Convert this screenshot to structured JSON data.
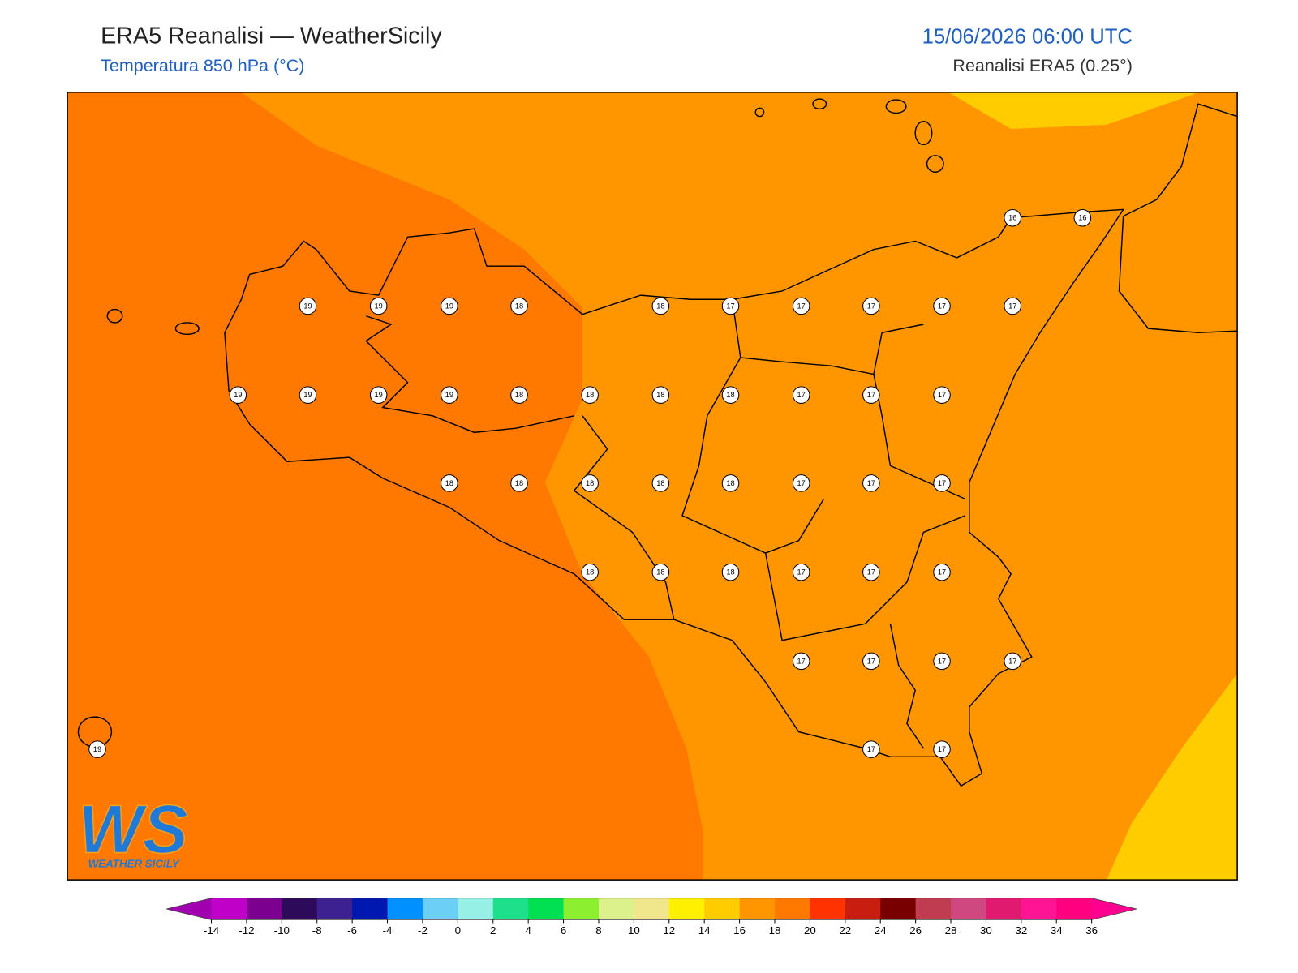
{
  "header": {
    "title": "ERA5 Reanalisi — WeatherSicily",
    "subtitle": "Temperatura 850 hPa (°C)",
    "datetime": "15/06/2026 06:00 UTC",
    "source": "Reanalisi ERA5 (0.25°)"
  },
  "map": {
    "points": [
      16,
      16,
      19,
      19,
      19,
      18,
      18,
      17,
      17,
      17,
      17,
      17,
      19,
      19,
      19,
      19,
      18,
      18,
      18,
      18,
      17,
      17,
      17,
      18,
      18,
      18,
      18,
      18,
      17,
      17,
      17,
      18,
      18,
      18,
      17,
      17,
      17,
      17,
      17,
      17,
      17,
      19,
      17,
      17
    ]
  },
  "colorbar": {
    "ticks": [
      -14,
      -12,
      -10,
      -8,
      -6,
      -4,
      -2,
      0,
      2,
      4,
      6,
      8,
      10,
      12,
      14,
      16,
      18,
      20,
      22,
      24,
      26,
      28,
      30,
      32,
      34,
      36
    ],
    "colors": [
      "#c000c8",
      "#7b0090",
      "#2d0a5a",
      "#3b2290",
      "#0018b0",
      "#0090ff",
      "#6ccff6",
      "#96f0e6",
      "#1ee08c",
      "#00e050",
      "#8cf030",
      "#dcf08c",
      "#f0e68c",
      "#fff000",
      "#ffcc00",
      "#ff9600",
      "#ff7800",
      "#ff3200",
      "#c81e0f",
      "#780000",
      "#c03c50",
      "#d04880",
      "#e01a6e",
      "#ff1493",
      "#ff0080"
    ],
    "under_color": "#a000b0",
    "over_color": "#ff0090"
  },
  "logo": {
    "mark": "WS",
    "text": "WEATHER SICILY"
  }
}
